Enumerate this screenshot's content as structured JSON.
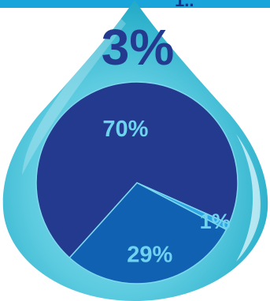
{
  "banner": {
    "text": "1.."
  },
  "headline": "3%",
  "chart_data": {
    "type": "pie",
    "title": "",
    "slices": [
      {
        "label": "70%",
        "value": 70,
        "color": "#233a8f"
      },
      {
        "label": "1%",
        "value": 1,
        "color": "#2ea7e4"
      },
      {
        "label": "29%",
        "value": 29,
        "color": "#1161b3"
      }
    ],
    "legend": "none"
  },
  "colors": {
    "banner": "#1aa4dc",
    "drop_light": "#c3edf6",
    "drop_mid": "#64cde1",
    "drop_dark": "#1faec8",
    "headline": "#233a8f",
    "slice_label": "#6fd3f0"
  }
}
